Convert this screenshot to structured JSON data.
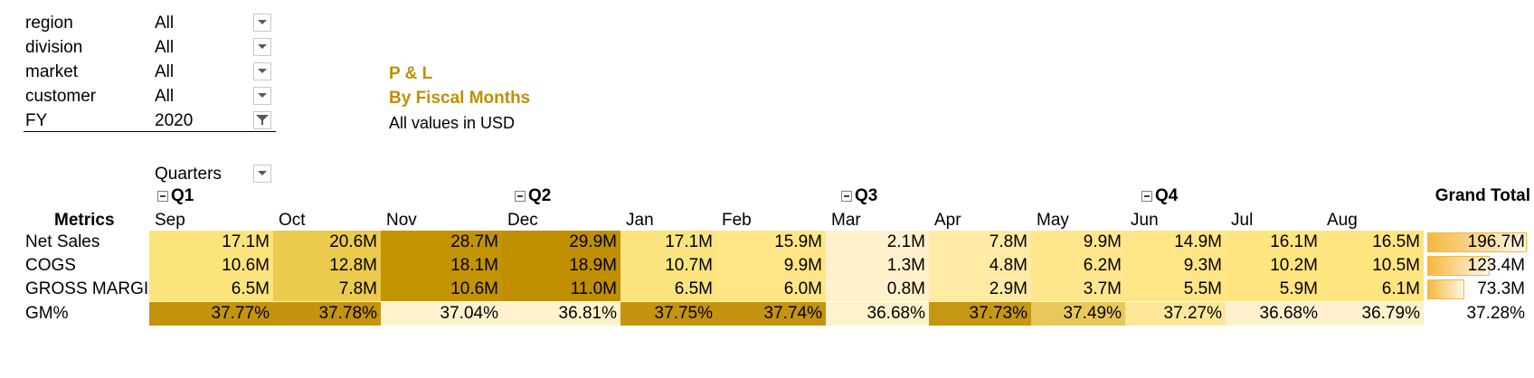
{
  "filters": [
    {
      "label": "region",
      "value": "All"
    },
    {
      "label": "division",
      "value": "All"
    },
    {
      "label": "market",
      "value": "All"
    },
    {
      "label": "customer",
      "value": "All"
    },
    {
      "label": "FY",
      "value": "2020"
    }
  ],
  "title": {
    "line1": "P & L",
    "line2": "By Fiscal Months",
    "note": "All values in USD"
  },
  "pivot": {
    "column_field": "Quarters",
    "row_header": "Metrics",
    "grand_total_label": "Grand Total",
    "quarters": [
      "Q1",
      "Q2",
      "Q3",
      "Q4"
    ],
    "months": [
      "Sep",
      "Oct",
      "Nov",
      "Dec",
      "Jan",
      "Feb",
      "Mar",
      "Apr",
      "May",
      "Jun",
      "Jul",
      "Aug"
    ],
    "rows": [
      {
        "label": "Net Sales",
        "values": [
          "17.1M",
          "20.6M",
          "28.7M",
          "29.9M",
          "17.1M",
          "15.9M",
          "2.1M",
          "7.8M",
          "9.9M",
          "14.9M",
          "16.1M",
          "16.5M"
        ],
        "total": "196.7M",
        "total_fraction": 1.0
      },
      {
        "label": "COGS",
        "values": [
          "10.6M",
          "12.8M",
          "18.1M",
          "18.9M",
          "10.7M",
          "9.9M",
          "1.3M",
          "4.8M",
          "6.2M",
          "9.3M",
          "10.2M",
          "10.5M"
        ],
        "total": "123.4M",
        "total_fraction": 0.627
      },
      {
        "label": "GROSS MARGI",
        "values": [
          "6.5M",
          "7.8M",
          "10.6M",
          "11.0M",
          "6.5M",
          "6.0M",
          "0.8M",
          "2.9M",
          "3.7M",
          "5.5M",
          "5.9M",
          "6.1M"
        ],
        "total": "73.3M",
        "total_fraction": 0.373
      },
      {
        "label": "GM%",
        "values": [
          "37.77%",
          "37.78%",
          "37.04%",
          "36.81%",
          "37.75%",
          "37.74%",
          "36.68%",
          "37.73%",
          "37.49%",
          "37.27%",
          "36.68%",
          "36.79%"
        ],
        "total": "37.28%"
      }
    ]
  },
  "colors": {
    "accent": "#bf9000",
    "heat": [
      [
        "#fce47d",
        "#ecca4d",
        "#c49302",
        "#c08f00",
        "#fbe37d",
        "#ffe586",
        "#fff1cc",
        "#ffeba4",
        "#ffe68d",
        "#ffe586",
        "#fee580",
        "#fee580"
      ],
      [
        "#fce47d",
        "#ecca4d",
        "#c49302",
        "#c08f00",
        "#fbe37d",
        "#ffe586",
        "#fff1cc",
        "#ffeba4",
        "#ffe68d",
        "#ffe586",
        "#fee580",
        "#fee580"
      ],
      [
        "#fce47d",
        "#ecca4d",
        "#c49302",
        "#c08f00",
        "#fbe37d",
        "#ffe586",
        "#fff1cc",
        "#ffeba4",
        "#ffe68d",
        "#ffe586",
        "#fee580",
        "#fee580"
      ],
      [
        "#c4940a",
        "#c49410",
        "#fff2cc",
        "#fff2cc",
        "#c49410",
        "#c49410",
        "#fff2cc",
        "#c69712",
        "#e9c85b",
        "#ffe79a",
        "#fff1cd",
        "#fff1cd"
      ]
    ],
    "databar": "#f5b73f"
  }
}
